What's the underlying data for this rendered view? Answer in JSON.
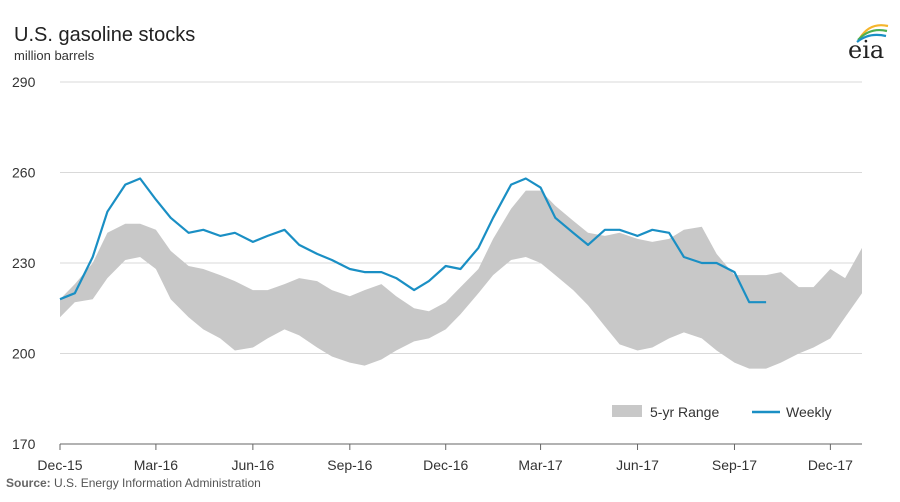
{
  "chart_data": {
    "type": "area",
    "title": "U.S. gasoline stocks",
    "subtitle": "million barrels",
    "source_label": "Source:",
    "source_text": "U.S. Energy Information Administration",
    "ylim": [
      170,
      290
    ],
    "yticks": [
      170,
      200,
      230,
      260,
      290
    ],
    "xlim": [
      "2015-12-01",
      "2017-12-31"
    ],
    "xticks": [
      "Dec-15",
      "Mar-16",
      "Jun-16",
      "Sep-16",
      "Dec-16",
      "Mar-17",
      "Jun-17",
      "Sep-17",
      "Dec-17"
    ],
    "grid": true,
    "legend_position": "bottom-right",
    "colors": {
      "range": "#c8c8c8",
      "weekly": "#1a8fc4",
      "grid": "#d9d9d9",
      "axis": "#666666"
    },
    "series": [
      {
        "name": "5-yr Range",
        "kind": "band",
        "x": [
          "2015-12-01",
          "2015-12-15",
          "2016-01-01",
          "2016-01-15",
          "2016-02-01",
          "2016-02-15",
          "2016-03-01",
          "2016-03-15",
          "2016-04-01",
          "2016-04-15",
          "2016-05-01",
          "2016-05-15",
          "2016-06-01",
          "2016-06-15",
          "2016-07-01",
          "2016-07-15",
          "2016-08-01",
          "2016-08-15",
          "2016-09-01",
          "2016-09-15",
          "2016-10-01",
          "2016-10-15",
          "2016-11-01",
          "2016-11-15",
          "2016-12-01",
          "2016-12-15",
          "2017-01-01",
          "2017-01-15",
          "2017-02-01",
          "2017-02-15",
          "2017-03-01",
          "2017-03-15",
          "2017-04-01",
          "2017-04-15",
          "2017-05-01",
          "2017-05-15",
          "2017-06-01",
          "2017-06-15",
          "2017-07-01",
          "2017-07-15",
          "2017-08-01",
          "2017-08-15",
          "2017-09-01",
          "2017-09-15",
          "2017-10-01",
          "2017-10-15",
          "2017-11-01",
          "2017-11-15",
          "2017-12-01",
          "2017-12-15",
          "2017-12-31"
        ],
        "low": [
          212,
          217,
          218,
          225,
          231,
          232,
          228,
          218,
          212,
          208,
          205,
          201,
          202,
          205,
          208,
          206,
          202,
          199,
          197,
          196,
          198,
          201,
          204,
          205,
          208,
          213,
          220,
          226,
          231,
          232,
          230,
          226,
          221,
          216,
          209,
          203,
          201,
          202,
          205,
          207,
          205,
          201,
          197,
          195,
          195,
          197,
          200,
          202,
          205,
          212,
          220
        ],
        "high": [
          218,
          223,
          230,
          240,
          243,
          243,
          241,
          234,
          229,
          228,
          226,
          224,
          221,
          221,
          223,
          225,
          224,
          221,
          219,
          221,
          223,
          219,
          215,
          214,
          217,
          222,
          228,
          238,
          248,
          254,
          254,
          249,
          244,
          240,
          239,
          240,
          238,
          237,
          238,
          241,
          242,
          233,
          226,
          226,
          226,
          227,
          222,
          222,
          228,
          225,
          235
        ]
      },
      {
        "name": "Weekly",
        "kind": "line",
        "x": [
          "2015-12-01",
          "2015-12-15",
          "2016-01-01",
          "2016-01-15",
          "2016-02-01",
          "2016-02-15",
          "2016-03-01",
          "2016-03-15",
          "2016-04-01",
          "2016-04-15",
          "2016-05-01",
          "2016-05-15",
          "2016-06-01",
          "2016-06-15",
          "2016-07-01",
          "2016-07-15",
          "2016-08-01",
          "2016-08-15",
          "2016-09-01",
          "2016-09-15",
          "2016-10-01",
          "2016-10-15",
          "2016-11-01",
          "2016-11-15",
          "2016-12-01",
          "2016-12-15",
          "2017-01-01",
          "2017-01-15",
          "2017-02-01",
          "2017-02-15",
          "2017-03-01",
          "2017-03-15",
          "2017-04-01",
          "2017-04-15",
          "2017-05-01",
          "2017-05-15",
          "2017-06-01",
          "2017-06-15",
          "2017-07-01",
          "2017-07-15",
          "2017-08-01",
          "2017-08-15",
          "2017-09-01",
          "2017-09-15",
          "2017-10-01"
        ],
        "values": [
          218,
          220,
          232,
          247,
          256,
          258,
          251,
          245,
          240,
          241,
          239,
          240,
          237,
          239,
          241,
          236,
          233,
          231,
          228,
          227,
          227,
          225,
          221,
          224,
          229,
          228,
          235,
          245,
          256,
          258,
          255,
          245,
          240,
          236,
          241,
          241,
          239,
          241,
          240,
          232,
          230,
          230,
          227,
          217,
          217
        ]
      }
    ]
  }
}
